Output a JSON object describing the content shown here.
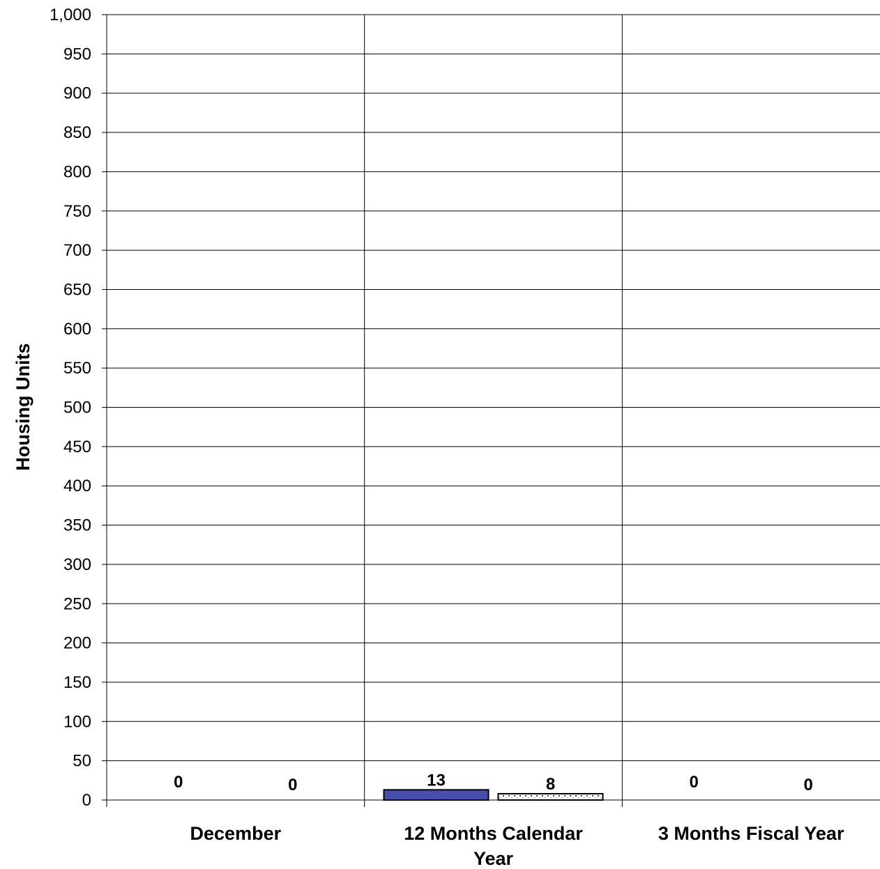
{
  "chart_data": {
    "type": "bar",
    "categories": [
      "December",
      "12 Months Calendar Year",
      "3 Months Fiscal Year"
    ],
    "category_label_lines": [
      [
        "December"
      ],
      [
        "12 Months Calendar",
        "Year"
      ],
      [
        "3 Months Fiscal Year"
      ]
    ],
    "series": [
      {
        "values": [
          0,
          13,
          0
        ],
        "color": "#3b44b0",
        "pattern": "fine-dots"
      },
      {
        "values": [
          0,
          8,
          0
        ],
        "color": "#ffffff",
        "pattern": "sparse-dots"
      }
    ],
    "xlabel": "",
    "ylabel": "Housing Units",
    "ylim": [
      0,
      1000
    ],
    "ytick_step": 50,
    "ytick_labels": [
      "0",
      "50",
      "100",
      "150",
      "200",
      "250",
      "300",
      "350",
      "400",
      "450",
      "500",
      "550",
      "600",
      "650",
      "700",
      "750",
      "800",
      "850",
      "900",
      "950",
      "1,000"
    ],
    "grid": true,
    "legend": "none"
  }
}
